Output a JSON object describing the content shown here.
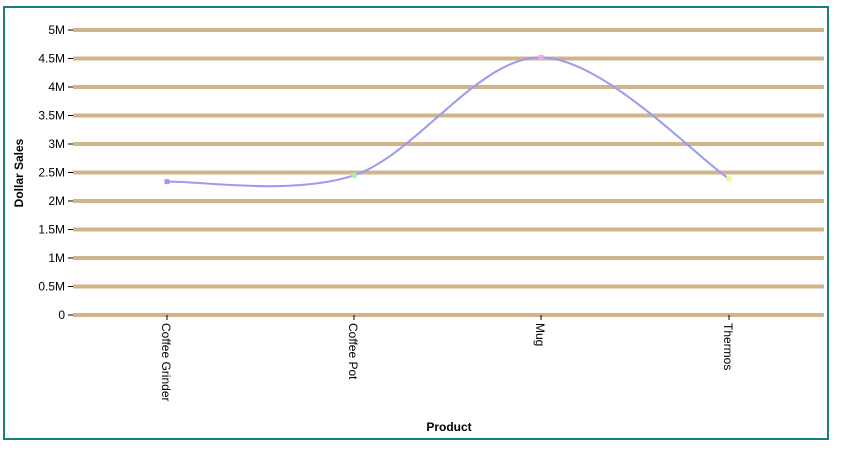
{
  "chart_data": {
    "type": "line",
    "title": "",
    "xlabel": "Product",
    "ylabel": "Dollar Sales",
    "categories": [
      "Coffee Grinder",
      "Coffee Pot",
      "Mug",
      "Thermos"
    ],
    "series": [
      {
        "values": [
          2340000,
          2450000,
          4520000,
          2390000
        ]
      }
    ],
    "ylim": [
      0,
      5000000
    ],
    "yticks": [
      0,
      500000,
      1000000,
      1500000,
      2000000,
      2500000,
      3000000,
      3500000,
      4000000,
      4500000,
      5000000
    ],
    "ytick_labels": [
      "0",
      "0.5M",
      "1M",
      "1.5M",
      "2M",
      "2.5M",
      "3M",
      "3.5M",
      "4M",
      "4.5M",
      "5M"
    ],
    "grid": true,
    "legend": "none",
    "colors": {
      "line": "#9a9af5",
      "gridline": "#d2b48c",
      "frame": "#1a7f7a",
      "markers": [
        "#9a9af5",
        "#a8f0a8",
        "#f0a8f0",
        "#f5f5a0"
      ]
    }
  }
}
